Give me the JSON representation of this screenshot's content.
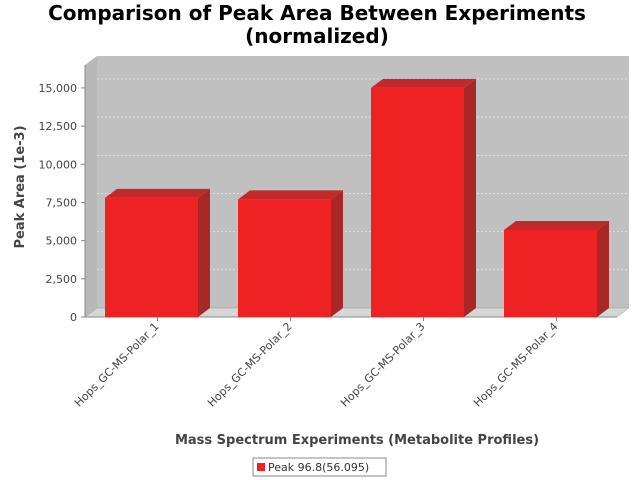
{
  "chart_data": {
    "type": "bar",
    "title_lines": [
      "Comparison of Peak Area Between Experiments",
      "(normalized)"
    ],
    "xlabel": "Mass Spectrum Experiments (Metabolite Profiles)",
    "ylabel": "Peak Area (1e-3)",
    "categories": [
      "Hops_GC-MS-Polar_1",
      "Hops_GC-MS-Polar_2",
      "Hops_GC-MS-Polar_3",
      "Hops_GC-MS-Polar_4"
    ],
    "series": [
      {
        "name": "Peak 96.8(56.095)",
        "values": [
          7800,
          7700,
          15000,
          5700
        ],
        "color": "#ee2222"
      }
    ],
    "ylim": [
      0,
      16500
    ],
    "yticks": [
      0,
      2500,
      5000,
      7500,
      10000,
      12500,
      15000
    ],
    "ytick_labels": [
      "0",
      "2,500",
      "5,000",
      "7,500",
      "10,000",
      "12,500",
      "15,000"
    ],
    "grid": true,
    "legend_position": "bottom-center",
    "style": "3d",
    "plot_background": "#c0c0c0"
  }
}
